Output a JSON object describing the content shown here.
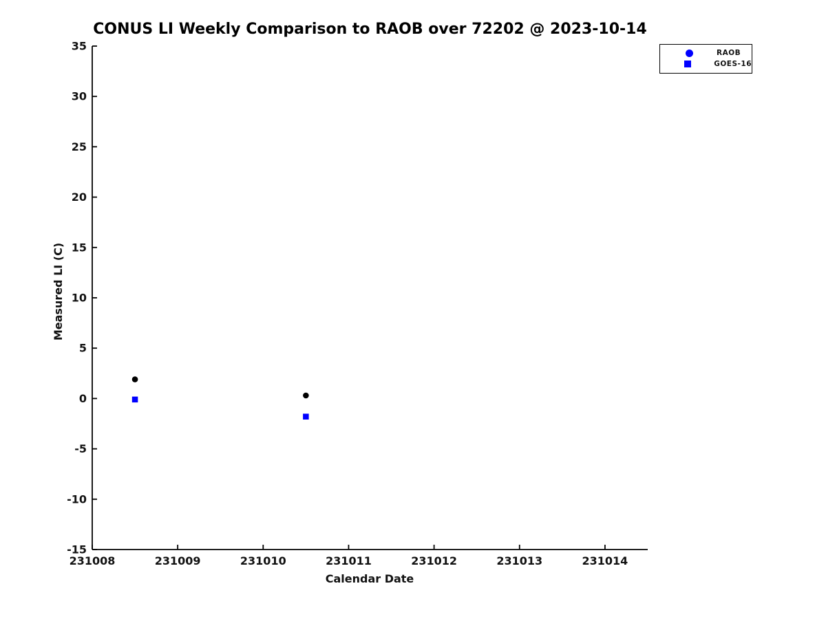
{
  "chart_data": {
    "type": "scatter",
    "title": "CONUS LI Weekly Comparison to RAOB over 72202 @ 2023-10-14",
    "xlabel": "Calendar Date",
    "ylabel": "Measured LI (C)",
    "xlim": [
      231008,
      231014.5
    ],
    "ylim": [
      -15,
      35
    ],
    "xticks": [
      231008,
      231009,
      231010,
      231011,
      231012,
      231013,
      231014
    ],
    "yticks": [
      -15,
      -10,
      -5,
      0,
      5,
      10,
      15,
      20,
      25,
      30,
      35
    ],
    "grid": false,
    "legend_position": "top-right",
    "series": [
      {
        "name": "RAOB",
        "marker": "circle",
        "point_color": "#000000",
        "legend_marker_color": "#0000ff",
        "x": [
          231008.5,
          231010.5
        ],
        "y": [
          1.9,
          0.3
        ]
      },
      {
        "name": "GOES-16",
        "marker": "square",
        "point_color": "#0000ff",
        "legend_marker_color": "#0000ff",
        "x": [
          231008.5,
          231010.5
        ],
        "y": [
          -0.1,
          -1.8
        ]
      }
    ]
  },
  "colors": {
    "axis": "#000000",
    "text": "#111111",
    "background": "#ffffff",
    "series_blue": "#0000ff"
  }
}
